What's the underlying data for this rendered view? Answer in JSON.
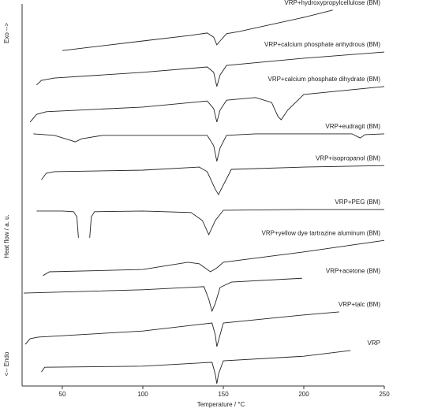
{
  "chart_data": {
    "type": "line",
    "xlabel": "Temperature / °C",
    "ylabel": "Heat flow / a. u.",
    "annotations": [
      "Exo -->",
      "<-- Endo"
    ],
    "xlim": [
      25,
      250
    ],
    "xticks": [
      50,
      100,
      150,
      200,
      250
    ],
    "ylim": [
      0,
      100
    ],
    "color": "#222222",
    "series": [
      {
        "name": "VRP+hydroxypropylcellulose (BM)",
        "x": [
          50,
          100,
          130,
          140,
          144,
          146,
          148,
          152,
          160,
          200,
          218
        ],
        "values": [
          87.8,
          90.3,
          91.8,
          92.4,
          91.3,
          89.3,
          90.3,
          92.2,
          92.8,
          96.5,
          98.4
        ]
      },
      {
        "name": "VRP+calcium phosphate anhydrous (BM)",
        "x": [
          34,
          37,
          45,
          100,
          140,
          144,
          146,
          148,
          152,
          200,
          250
        ],
        "values": [
          78.8,
          80.0,
          80.6,
          82.1,
          83.5,
          82.1,
          78.4,
          81.4,
          83.9,
          85.8,
          87.4
        ]
      },
      {
        "name": "VRP+calcium phosphate dihydrate (BM)",
        "x": [
          30,
          34,
          40,
          100,
          140,
          144,
          146,
          148,
          152,
          170,
          180,
          184,
          186,
          190,
          200,
          250
        ],
        "values": [
          69.1,
          71.1,
          71.8,
          73.0,
          74.6,
          72.6,
          69.1,
          72.2,
          74.8,
          75.5,
          74.2,
          70.5,
          69.7,
          72.2,
          76.3,
          78.4
        ]
      },
      {
        "name": "VRP+eudragit (BM)",
        "x": [
          32,
          45,
          55,
          58,
          62,
          75,
          120,
          140,
          144,
          146,
          148,
          152,
          170,
          230,
          235,
          238,
          250
        ],
        "values": [
          66.0,
          65.6,
          64.3,
          63.9,
          64.7,
          65.6,
          65.6,
          65.6,
          62.9,
          58.8,
          62.3,
          65.6,
          66.0,
          66.0,
          64.9,
          65.8,
          66.0
        ]
      },
      {
        "name": "VRP+isopropanol (BM)",
        "x": [
          37,
          40,
          45,
          100,
          135,
          140,
          145,
          147,
          150,
          155,
          200,
          250
        ],
        "values": [
          54.0,
          55.7,
          56.1,
          56.5,
          57.3,
          56.1,
          51.5,
          50.1,
          52.6,
          56.7,
          57.3,
          57.7
        ]
      },
      {
        "name": "VRP+PEG (BM)",
        "x": [
          34,
          50,
          57,
          59,
          60,
          63,
          67,
          68,
          70,
          100,
          130,
          137,
          141,
          145,
          150,
          200,
          250
        ],
        "values": [
          45.8,
          45.8,
          45.6,
          44.3,
          38.8,
          null,
          38.8,
          44.3,
          45.6,
          45.8,
          45.4,
          43.3,
          39.6,
          43.3,
          46.0,
          46.2,
          46.2
        ]
      },
      {
        "name": "VRP+yellow dye tartrazine aluminum (BM)",
        "x": [
          38,
          42,
          100,
          128,
          135,
          142,
          146,
          150,
          200,
          250
        ],
        "values": [
          28.9,
          29.9,
          30.5,
          32.4,
          32.0,
          29.9,
          30.9,
          32.4,
          35.1,
          38.1
        ]
      },
      {
        "name": "VRP+acetone (BM)",
        "x": [
          26,
          100,
          138,
          141,
          143,
          145,
          148,
          155,
          199
        ],
        "values": [
          24.3,
          25.2,
          26.0,
          22.7,
          19.6,
          21.6,
          25.8,
          27.2,
          28.2
        ]
      },
      {
        "name": "VRP+talc (BM)",
        "x": [
          27,
          30,
          35,
          100,
          143,
          145,
          146,
          148,
          150,
          200,
          222
        ],
        "values": [
          10.9,
          12.4,
          12.8,
          14.4,
          16.5,
          13.4,
          10.3,
          13.4,
          16.5,
          18.6,
          19.4
        ]
      },
      {
        "name": "VRP",
        "x": [
          37,
          39,
          100,
          143,
          145,
          146,
          147,
          150,
          200,
          229
        ],
        "values": [
          3.7,
          4.9,
          5.2,
          6.2,
          3.1,
          0.6,
          3.1,
          6.6,
          7.8,
          9.3
        ]
      }
    ]
  }
}
